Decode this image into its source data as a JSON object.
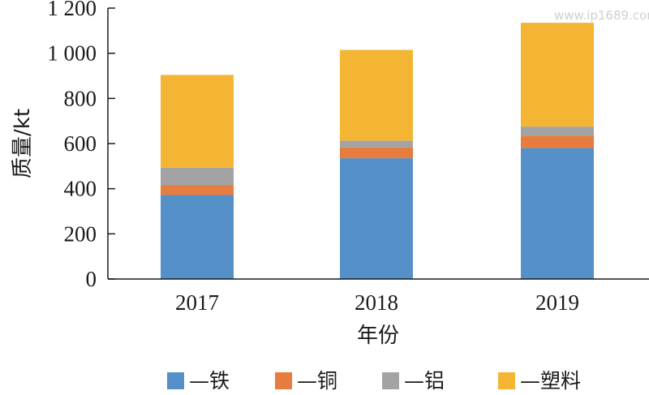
{
  "watermark": "www.ip1689.com",
  "chart_data": {
    "type": "bar",
    "stacked": true,
    "categories": [
      "2017",
      "2018",
      "2019"
    ],
    "series": [
      {
        "name": "—铁",
        "color": "#5591c8",
        "values": [
          372,
          535,
          580
        ]
      },
      {
        "name": "—铜",
        "color": "#e67c3f",
        "values": [
          43,
          48,
          55
        ]
      },
      {
        "name": "—铝",
        "color": "#a3a3a3",
        "values": [
          78,
          30,
          40
        ]
      },
      {
        "name": "—塑料",
        "color": "#f4b534",
        "values": [
          411,
          402,
          460
        ]
      }
    ],
    "xlabel": "年份",
    "ylabel": "质量/kt",
    "ylim": [
      0,
      1200
    ],
    "yticks": [
      0,
      200,
      400,
      600,
      800,
      1000,
      1200
    ],
    "ytick_labels": [
      "0",
      "200",
      "400",
      "600",
      "800",
      "1 000",
      "1 200"
    ],
    "grid": false,
    "legend_position": "bottom"
  }
}
